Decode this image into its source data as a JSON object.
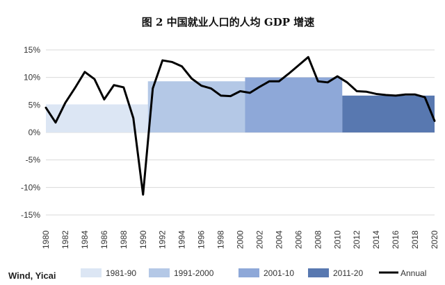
{
  "title": "图 2 中国就业人口的人均 GDP 增速",
  "source": "Wind, Yicai",
  "colors": {
    "band_1": "#dce6f4",
    "band_2": "#b4c8e6",
    "band_3": "#8ea8d8",
    "band_4": "#5878b0",
    "line": "#000000"
  },
  "chart_data": {
    "type": "line",
    "x": [
      1980,
      1981,
      1982,
      1983,
      1984,
      1985,
      1986,
      1987,
      1988,
      1989,
      1990,
      1991,
      1992,
      1993,
      1994,
      1995,
      1996,
      1997,
      1998,
      1999,
      2000,
      2001,
      2002,
      2003,
      2004,
      2005,
      2006,
      2007,
      2008,
      2009,
      2010,
      2011,
      2012,
      2013,
      2014,
      2015,
      2016,
      2017,
      2018,
      2019,
      2020
    ],
    "series": [
      {
        "name": "Annual",
        "values": [
          4.5,
          1.8,
          5.4,
          8.1,
          11.0,
          9.7,
          6.0,
          8.6,
          8.2,
          2.6,
          -11.3,
          8.0,
          13.1,
          12.8,
          12.0,
          9.8,
          8.5,
          8.0,
          6.7,
          6.6,
          7.5,
          7.2,
          8.3,
          9.3,
          9.3,
          10.7,
          12.2,
          13.7,
          9.3,
          9.1,
          10.2,
          9.1,
          7.5,
          7.4,
          7.0,
          6.8,
          6.7,
          6.9,
          6.9,
          6.4,
          2.1
        ]
      }
    ],
    "bands": [
      {
        "name": "1981-90",
        "from": 1980,
        "to": 1990.5,
        "value": 5.1
      },
      {
        "name": "1991-2000",
        "from": 1990.5,
        "to": 2000.5,
        "value": 9.3
      },
      {
        "name": "2001-10",
        "from": 2000.5,
        "to": 2010.5,
        "value": 10.0
      },
      {
        "name": "2011-20",
        "from": 2010.5,
        "to": 2020,
        "value": 6.7
      }
    ],
    "y_ticks": [
      "15%",
      "10%",
      "5%",
      "0%",
      "-5%",
      "-10%",
      "-15%"
    ],
    "y_tick_values": [
      15,
      10,
      5,
      0,
      -5,
      -10,
      -15
    ],
    "x_ticks": [
      "1980",
      "1982",
      "1984",
      "1986",
      "1988",
      "1990",
      "1992",
      "1994",
      "1996",
      "1998",
      "2000",
      "2002",
      "2004",
      "2006",
      "2008",
      "2010",
      "2012",
      "2014",
      "2016",
      "2018",
      "2020"
    ],
    "x_tick_values": [
      1980,
      1982,
      1984,
      1986,
      1988,
      1990,
      1992,
      1994,
      1996,
      1998,
      2000,
      2002,
      2004,
      2006,
      2008,
      2010,
      2012,
      2014,
      2016,
      2018,
      2020
    ],
    "xlim": [
      1980,
      2020
    ],
    "ylim": [
      -15,
      15
    ],
    "grid": true,
    "legend_position": "bottom",
    "legend": [
      "1981-90",
      "1991-2000",
      "2001-10",
      "2011-20",
      "Annual"
    ]
  }
}
